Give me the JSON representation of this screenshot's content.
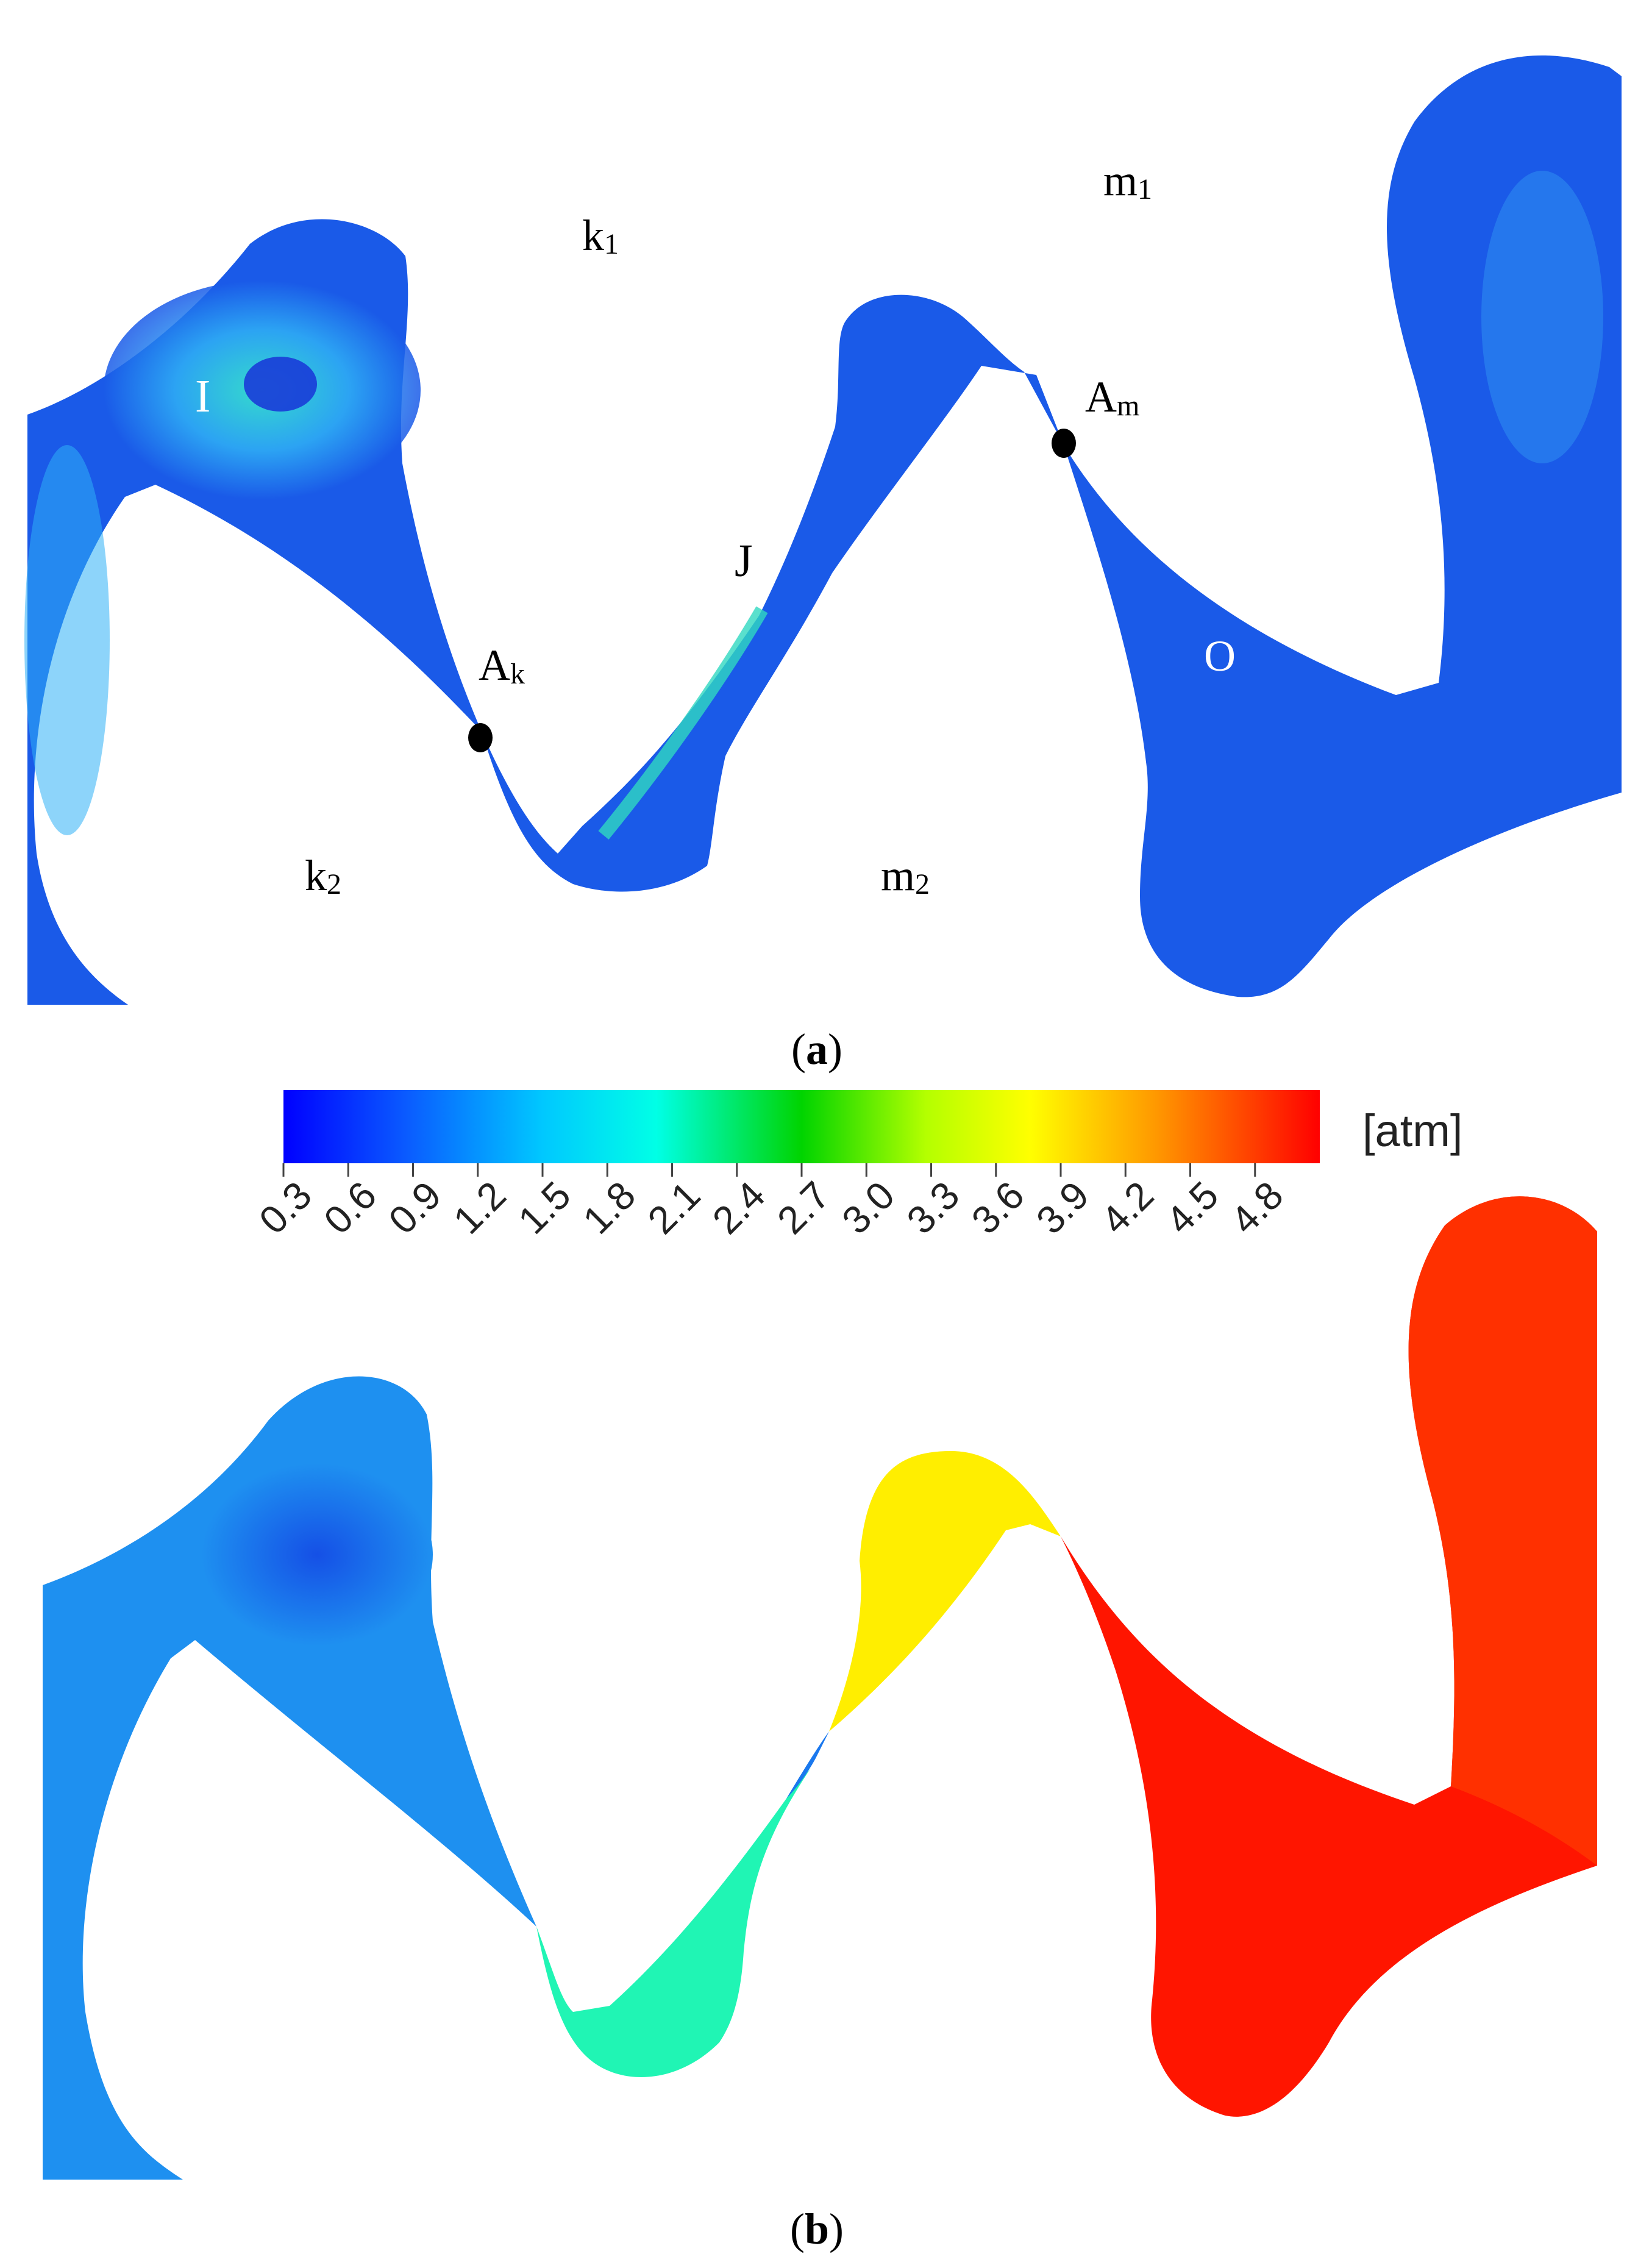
{
  "panel_a": {
    "caption_open": "(",
    "caption_letter": "a",
    "caption_close": ")",
    "labels": {
      "k1_main": "k",
      "k1_sub": "1",
      "m1_main": "m",
      "m1_sub": "1",
      "k2_main": "k",
      "k2_sub": "2",
      "m2_main": "m",
      "m2_sub": "2",
      "I": "I",
      "J": "J",
      "O": "O",
      "Ak_main": "A",
      "Ak_sub": "k",
      "Am_main": "A",
      "Am_sub": "m"
    },
    "colors": {
      "fluid": "#1a5ae8",
      "inlet_light": "#2fb0f5",
      "inlet_peak": "#39f0c8",
      "marker": "#000000"
    }
  },
  "colorbar": {
    "unit": "[atm]",
    "ticks": [
      "0.3",
      "0.6",
      "0.9",
      "1.2",
      "1.5",
      "1.8",
      "2.1",
      "2.4",
      "2.7",
      "3.0",
      "3.3",
      "3.6",
      "3.9",
      "4.2",
      "4.5",
      "4.8"
    ],
    "stops": [
      "#0000ff",
      "#0a5cff",
      "#00c8ff",
      "#00ffe6",
      "#00d400",
      "#b4ff00",
      "#ffff00",
      "#ff9a00",
      "#ff0000"
    ]
  },
  "panel_b": {
    "caption_open": "(",
    "caption_letter": "b",
    "caption_close": ")",
    "colors": {
      "left_lobe": "#1e90f0",
      "left_core": "#1550e6",
      "center_lower": "#20f5b4",
      "center_upper": "#ffee00",
      "right": "#ff1500",
      "right_top": "#ff3000"
    }
  }
}
